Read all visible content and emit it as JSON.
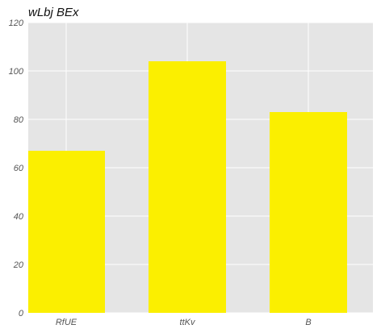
{
  "chart_data": {
    "type": "bar",
    "title": "wLbj  BEx",
    "xlabel": "",
    "ylabel": "",
    "categories": [
      "RfUE",
      "ttKv",
      "B"
    ],
    "values": [
      67,
      104,
      83
    ],
    "ylim": [
      0,
      120
    ],
    "yticks": [
      0,
      20,
      40,
      60,
      80,
      100,
      120
    ],
    "grid": true,
    "bar_color": "#fbef00",
    "background_color": "#e5e5e5",
    "grid_color": "#ffffff"
  }
}
